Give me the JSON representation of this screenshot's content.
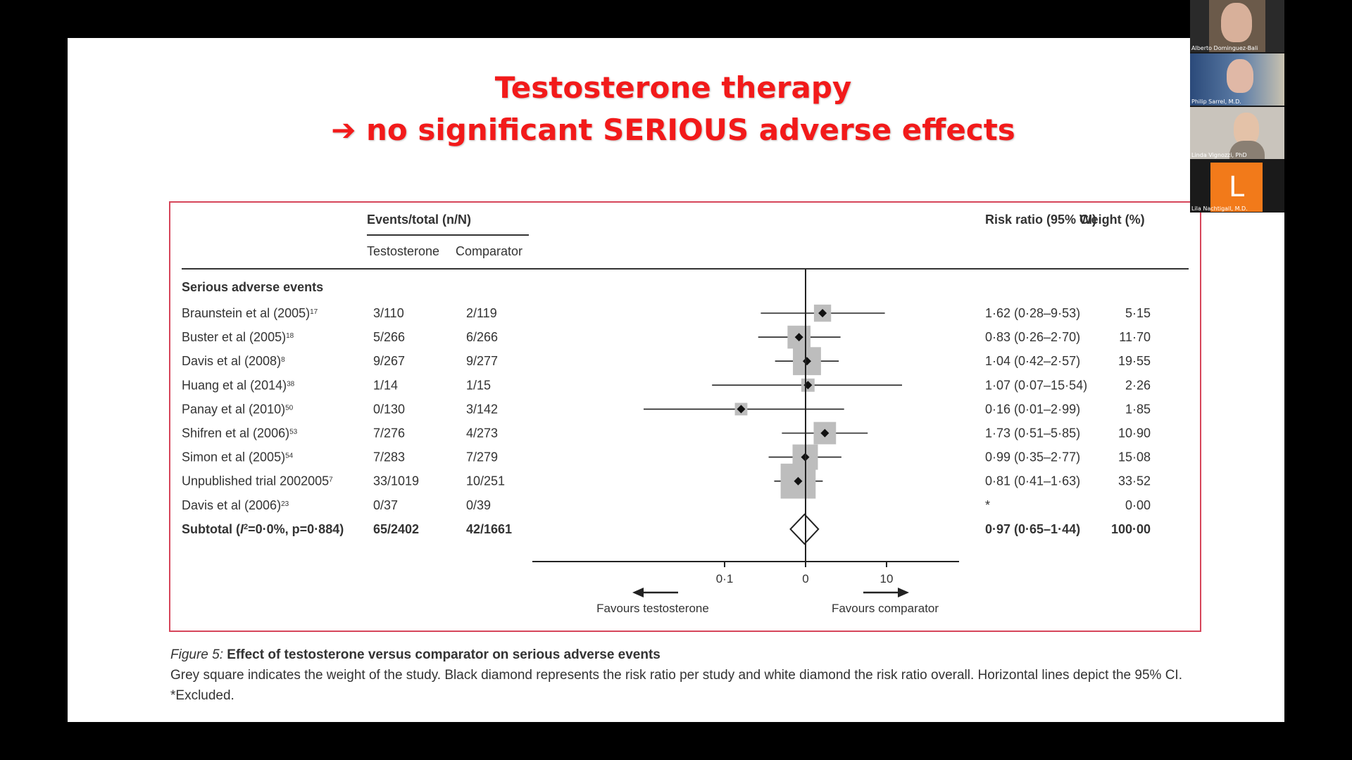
{
  "slide": {
    "title_line1": "Testosterone therapy",
    "title_line2": "➔ no significant SERIOUS adverse effects"
  },
  "figure": {
    "header_events": "Events/total (n/N)",
    "header_testosterone": "Testosterone",
    "header_comparator": "Comparator",
    "header_rr": "Risk ratio (95% CI)",
    "header_weight": "Weight (%)",
    "section_label": "Serious adverse events",
    "axis_ticks": [
      "0·1",
      "0",
      "10"
    ],
    "favours_left": "Favours testosterone",
    "favours_right": "Favours comparator",
    "caption_title_prefix": "Figure 5:",
    "caption_title": "Effect of testosterone versus comparator on serious adverse events",
    "caption_text": "Grey square indicates the weight of the study. Black diamond represents the risk ratio per study and white diamond the risk ratio overall. Horizontal lines depict the 95% CI. *Excluded."
  },
  "chart_data": {
    "type": "forest",
    "xscale": "log",
    "null_value": 1,
    "studies": [
      {
        "label": "Braunstein et al (2005)",
        "ref": "17",
        "testosterone": "3/110",
        "comparator": "2/119",
        "rr_text": "1·62 (0·28–9·53)",
        "weight_text": "5·15",
        "rr": 1.62,
        "lo": 0.28,
        "hi": 9.53,
        "weight": 5.15
      },
      {
        "label": "Buster et al (2005)",
        "ref": "18",
        "testosterone": "5/266",
        "comparator": "6/266",
        "rr_text": "0·83 (0·26–2·70)",
        "weight_text": "11·70",
        "rr": 0.83,
        "lo": 0.26,
        "hi": 2.7,
        "weight": 11.7
      },
      {
        "label": "Davis et al (2008)",
        "ref": "8",
        "testosterone": "9/267",
        "comparator": "9/277",
        "rr_text": "1·04 (0·42–2·57)",
        "weight_text": "19·55",
        "rr": 1.04,
        "lo": 0.42,
        "hi": 2.57,
        "weight": 19.55
      },
      {
        "label": "Huang et al (2014)",
        "ref": "38",
        "testosterone": "1/14",
        "comparator": "1/15",
        "rr_text": "1·07 (0·07–15·54)",
        "weight_text": "2·26",
        "rr": 1.07,
        "lo": 0.07,
        "hi": 15.54,
        "weight": 2.26
      },
      {
        "label": "Panay et al (2010)",
        "ref": "50",
        "testosterone": "0/130",
        "comparator": "3/142",
        "rr_text": "0·16 (0·01–2·99)",
        "weight_text": "1·85",
        "rr": 0.16,
        "lo": 0.01,
        "hi": 2.99,
        "weight": 1.85
      },
      {
        "label": "Shifren et al (2006)",
        "ref": "53",
        "testosterone": "7/276",
        "comparator": "4/273",
        "rr_text": "1·73 (0·51–5·85)",
        "weight_text": "10·90",
        "rr": 1.73,
        "lo": 0.51,
        "hi": 5.85,
        "weight": 10.9
      },
      {
        "label": "Simon et al (2005)",
        "ref": "54",
        "testosterone": "7/283",
        "comparator": "7/279",
        "rr_text": "0·99 (0·35–2·77)",
        "weight_text": "15·08",
        "rr": 0.99,
        "lo": 0.35,
        "hi": 2.77,
        "weight": 15.08
      },
      {
        "label": "Unpublished trial 2002005",
        "ref": "7",
        "testosterone": "33/1019",
        "comparator": "10/251",
        "rr_text": "0·81 (0·41–1·63)",
        "weight_text": "33·52",
        "rr": 0.81,
        "lo": 0.41,
        "hi": 1.63,
        "weight": 33.52
      },
      {
        "label": "Davis et al (2006)",
        "ref": "23",
        "testosterone": "0/37",
        "comparator": "0/39",
        "rr_text": "*",
        "weight_text": "0·00",
        "rr": null,
        "lo": null,
        "hi": null,
        "weight": 0.0
      }
    ],
    "subtotal": {
      "label_prefix": "Subtotal (",
      "label_i": "I",
      "label_sup": "2",
      "label_suffix": "=0·0%, p=0·884)",
      "testosterone": "65/2402",
      "comparator": "42/1661",
      "rr_text": "0·97 (0·65–1·44)",
      "weight_text": "100·00",
      "rr": 0.97,
      "lo": 0.65,
      "hi": 1.44
    }
  },
  "participants": [
    {
      "name": "Alberto Dominguez-Bali"
    },
    {
      "name": "Philip Sarrel, M.D."
    },
    {
      "name": "Linda Vignozzi, PhD"
    },
    {
      "name": "Lila Nachtigall, M.D.",
      "initial": "L"
    }
  ],
  "colors": {
    "title": "#f21a1a",
    "frame": "#d6455a",
    "avatar": "#f27a1a",
    "square": "#bdbdbd"
  }
}
